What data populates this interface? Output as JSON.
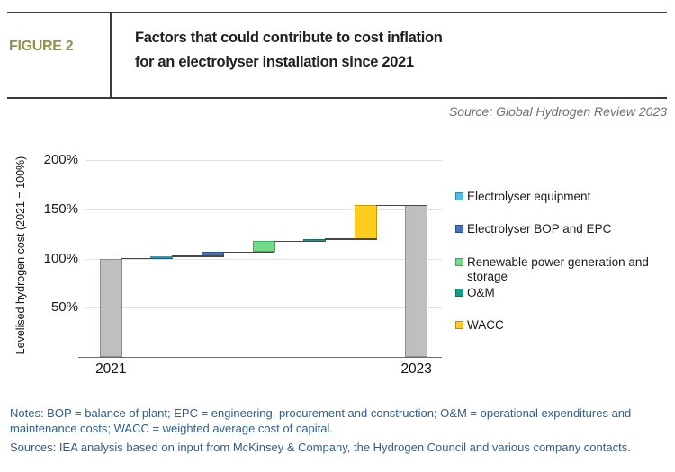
{
  "header": {
    "figure_label": "FIGURE 2",
    "title_line1": "Factors that could contribute to cost inflation",
    "title_line2": "for an electrolyser installation since 2021"
  },
  "source": "Source: Global Hydrogen Review 2023",
  "chart_data": {
    "type": "waterfall",
    "title": "Factors that could contribute to cost inflation for an electrolyser installation since 2021",
    "ylabel": "Levelised hydrogen cost (2021 = 100%)",
    "ylim": [
      0,
      209
    ],
    "yticks": [
      50,
      100,
      150,
      200
    ],
    "ytick_suffix": "%",
    "grid": true,
    "legend_position": "right",
    "categories": [
      "2021",
      "Electrolyser equipment",
      "Electrolyser BOP and EPC",
      "Renewable power generation and storage",
      "O&M",
      "WACC",
      "2023"
    ],
    "bars": [
      {
        "category": "2021",
        "kind": "total",
        "start": 0,
        "end": 100,
        "color": "#BFBFBF",
        "border": "#8C8C8C",
        "axis_label": "2021"
      },
      {
        "category": "Electrolyser equipment",
        "kind": "increase",
        "start": 100,
        "end": 102.5,
        "color": "#49C3E8",
        "border": "#1F9FC9"
      },
      {
        "category": "Electrolyser BOP and EPC",
        "kind": "increase",
        "start": 102.5,
        "end": 106.5,
        "color": "#4472C4",
        "border": "#2A5699"
      },
      {
        "category": "Renewable power generation and storage",
        "kind": "increase",
        "start": 106.5,
        "end": 117.5,
        "color": "#71DC8C",
        "border": "#3DAE63"
      },
      {
        "category": "O&M",
        "kind": "increase",
        "start": 117.5,
        "end": 119.5,
        "color": "#0BA08E",
        "border": "#047A6C"
      },
      {
        "category": "WACC",
        "kind": "increase",
        "start": 119.5,
        "end": 154,
        "color": "#FDCC1C",
        "border": "#C79B06"
      },
      {
        "category": "2023",
        "kind": "total",
        "start": 0,
        "end": 154,
        "color": "#BFBFBF",
        "border": "#8C8C8C",
        "axis_label": "2023"
      }
    ],
    "legend": [
      {
        "label": "Electrolyser equipment",
        "color": "#49C3E8"
      },
      {
        "label": "Electrolyser BOP and EPC",
        "color": "#4472C4"
      },
      {
        "label": "Renewable power generation and storage",
        "color": "#71DC8C"
      },
      {
        "label": "O&M",
        "color": "#0BA08E"
      },
      {
        "label": "WACC",
        "color": "#FDCC1C"
      }
    ]
  },
  "footer": {
    "notes": "Notes: BOP = balance of plant; EPC = engineering, procurement and construction; O&M = operational expenditures and maintenance costs; WACC = weighted average cost of capital.",
    "sources": "Sources: IEA analysis based on input from McKinsey & Company, the Hydrogen Council and various company contacts."
  },
  "colors": {
    "figure_label": "#93914E",
    "notes_text": "#2E5E93",
    "source_text": "#6F6F6F",
    "grid": "#E2E2E2",
    "connector": "#474747"
  }
}
